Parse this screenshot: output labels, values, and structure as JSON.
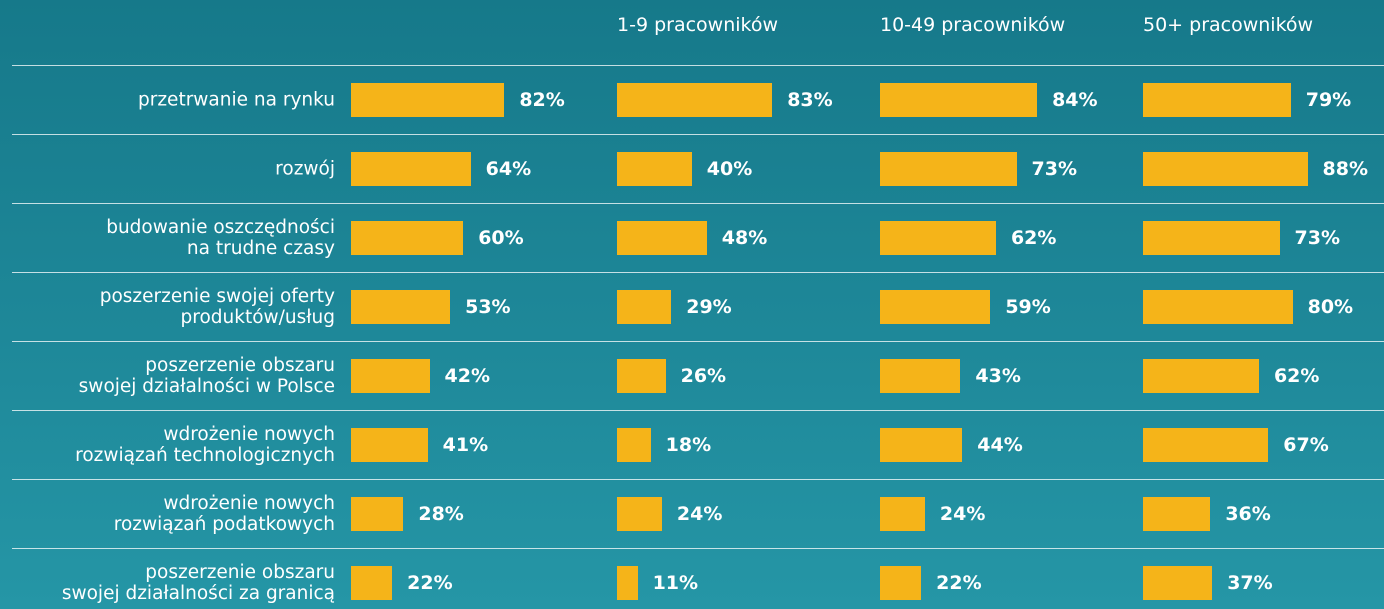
{
  "chart_data": {
    "type": "bar",
    "orientation": "horizontal",
    "categories": [
      "przetrwanie na rynku",
      "rozwój",
      "budowanie oszczędności\nna trudne czasy",
      "poszerzenie swojej oferty\nproduktów/usług",
      "poszerzenie obszaru\nswojej działalności w Polsce",
      "wdrożenie nowych\nrozwiązań technologicznych",
      "wdrożenie nowych\nrozwiązań podatkowych",
      "poszerzenie obszaru\nswojej działalności za granicą"
    ],
    "series": [
      {
        "color": "#f5b419",
        "values": [
          82,
          64,
          60,
          53,
          42,
          41,
          28,
          22
        ],
        "value_labels": [
          "82%",
          "64%",
          "60%",
          "53%",
          "42%",
          "41%",
          "28%",
          "22%"
        ]
      },
      {
        "name": "1-9 pracowników",
        "color": "#f5b419",
        "values": [
          83,
          40,
          48,
          29,
          26,
          18,
          24,
          11
        ],
        "value_labels": [
          "83%",
          "40%",
          "48%",
          "29%",
          "26%",
          "18%",
          "24%",
          "11%"
        ]
      },
      {
        "name": "10-49 pracowników",
        "color": "#f5b419",
        "values": [
          84,
          73,
          62,
          59,
          43,
          44,
          24,
          22
        ],
        "value_labels": [
          "84%",
          "73%",
          "62%",
          "59%",
          "43%",
          "44%",
          "24%",
          "22%"
        ]
      },
      {
        "name": "50+ pracowników",
        "color": "#f5b419",
        "values": [
          79,
          88,
          73,
          80,
          62,
          67,
          36,
          37
        ],
        "value_labels": [
          "79%",
          "88%",
          "73%",
          "80%",
          "62%",
          "67%",
          "36%",
          "37%"
        ]
      }
    ]
  }
}
